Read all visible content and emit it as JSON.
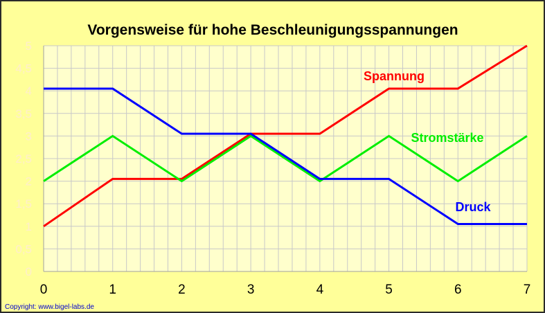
{
  "chart_data": {
    "type": "line",
    "title": "Vorgensweise für hohe Beschleunigungsspannungen",
    "x": [
      0,
      1,
      2,
      3,
      4,
      5,
      6,
      7
    ],
    "xticks": [
      "0",
      "1",
      "2",
      "3",
      "4",
      "5",
      "6",
      "7"
    ],
    "yticks": [
      "0",
      "0,5",
      "1",
      "1,5",
      "2",
      "2,5",
      "3",
      "3,5",
      "4",
      "4,5",
      "5"
    ],
    "xlim": [
      0,
      7
    ],
    "ylim": [
      0,
      5
    ],
    "grid": true,
    "series": [
      {
        "name": "Spannung",
        "color": "#ff0000",
        "points": [
          [
            0,
            1
          ],
          [
            1,
            2.05
          ],
          [
            2,
            2.05
          ],
          [
            3,
            3.05
          ],
          [
            4,
            3.05
          ],
          [
            5,
            4.05
          ],
          [
            6,
            4.05
          ],
          [
            7,
            5
          ]
        ]
      },
      {
        "name": "Stromstärke",
        "color": "#00ee00",
        "points": [
          [
            0,
            2
          ],
          [
            1,
            3
          ],
          [
            2,
            2
          ],
          [
            3,
            3
          ],
          [
            4,
            2
          ],
          [
            5,
            3
          ],
          [
            6,
            2
          ],
          [
            7,
            3
          ]
        ]
      },
      {
        "name": "Druck",
        "color": "#0000ff",
        "points": [
          [
            0,
            4.05
          ],
          [
            1,
            4.05
          ],
          [
            2,
            3.05
          ],
          [
            3,
            3.05
          ],
          [
            4,
            2.05
          ],
          [
            5,
            2.05
          ],
          [
            6,
            1.05
          ],
          [
            7,
            1.05
          ]
        ]
      }
    ],
    "copyright": "Copyright: www.bigel-labs.de"
  }
}
